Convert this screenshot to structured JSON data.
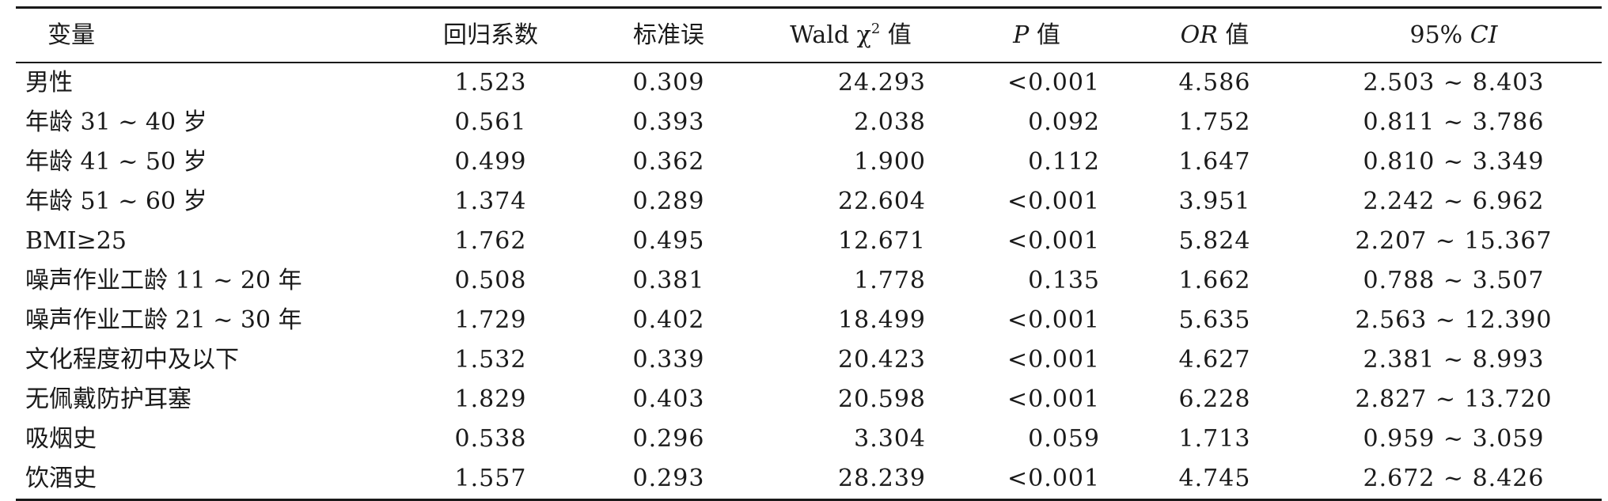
{
  "headers": {
    "variable": "变量",
    "coef": "回归系数",
    "se": "标准误",
    "wald_prefix": "Wald χ",
    "wald_sup": "2",
    "wald_suffix": " 值",
    "p_italic": "P",
    "p_suffix": " 值",
    "or_italic": "OR",
    "or_suffix": " 值",
    "ci_prefix": "95% ",
    "ci_italic": "CI"
  },
  "rows": [
    {
      "variable": "男性",
      "coef": "1.523",
      "se": "0.309",
      "wald": "24.293",
      "p": "<0.001",
      "or": "4.586",
      "ci": "2.503 ~ 8.403"
    },
    {
      "variable": "年龄 31 ~ 40 岁",
      "coef": "0.561",
      "se": "0.393",
      "wald": "2.038",
      "p": "0.092",
      "or": "1.752",
      "ci": "0.811 ~ 3.786"
    },
    {
      "variable": "年龄 41 ~ 50 岁",
      "coef": "0.499",
      "se": "0.362",
      "wald": "1.900",
      "p": "0.112",
      "or": "1.647",
      "ci": "0.810 ~ 3.349"
    },
    {
      "variable": "年龄 51 ~ 60 岁",
      "coef": "1.374",
      "se": "0.289",
      "wald": "22.604",
      "p": "<0.001",
      "or": "3.951",
      "ci": "2.242 ~ 6.962"
    },
    {
      "variable": "BMI≥25",
      "coef": "1.762",
      "se": "0.495",
      "wald": "12.671",
      "p": "<0.001",
      "or": "5.824",
      "ci": "2.207 ~ 15.367"
    },
    {
      "variable": "噪声作业工龄 11 ~ 20 年",
      "coef": "0.508",
      "se": "0.381",
      "wald": "1.778",
      "p": "0.135",
      "or": "1.662",
      "ci": "0.788 ~ 3.507"
    },
    {
      "variable": "噪声作业工龄 21 ~ 30 年",
      "coef": "1.729",
      "se": "0.402",
      "wald": "18.499",
      "p": "<0.001",
      "or": "5.635",
      "ci": "2.563 ~ 12.390"
    },
    {
      "variable": "文化程度初中及以下",
      "coef": "1.532",
      "se": "0.339",
      "wald": "20.423",
      "p": "<0.001",
      "or": "4.627",
      "ci": "2.381 ~ 8.993"
    },
    {
      "variable": "无佩戴防护耳塞",
      "coef": "1.829",
      "se": "0.403",
      "wald": "20.598",
      "p": "<0.001",
      "or": "6.228",
      "ci": "2.827 ~ 13.720"
    },
    {
      "variable": "吸烟史",
      "coef": "0.538",
      "se": "0.296",
      "wald": "3.304",
      "p": "0.059",
      "or": "1.713",
      "ci": "0.959 ~ 3.059"
    },
    {
      "variable": "饮酒史",
      "coef": "1.557",
      "se": "0.293",
      "wald": "28.239",
      "p": "<0.001",
      "or": "4.745",
      "ci": "2.672 ~ 8.426"
    }
  ]
}
